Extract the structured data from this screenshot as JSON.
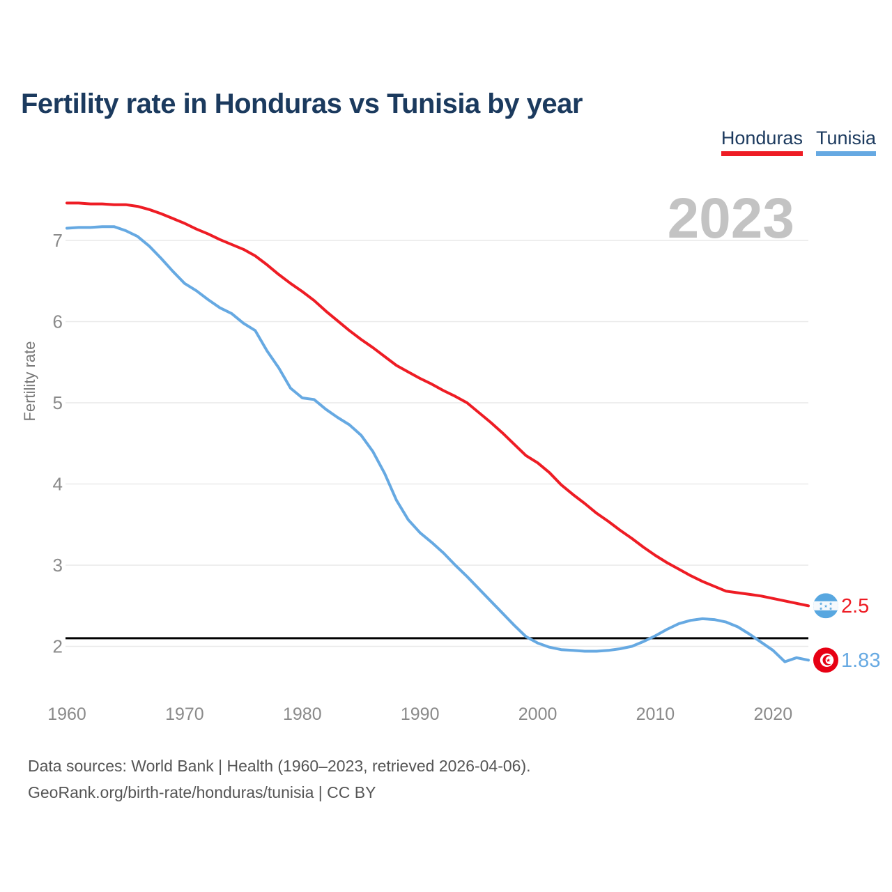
{
  "title": "Fertility rate in Honduras vs Tunisia by year",
  "legend": {
    "items": [
      {
        "label": "Honduras",
        "color": "#ee1c24"
      },
      {
        "label": "Tunisia",
        "color": "#66a9e2"
      }
    ]
  },
  "footer": {
    "line1": "Data sources: World Bank | Health (1960–2023, retrieved 2026-04-06).",
    "line2": "GeoRank.org/birth-rate/honduras/tunisia | CC BY"
  },
  "chart_data": {
    "type": "line",
    "title": "Fertility rate in Honduras vs Tunisia by year",
    "xlabel": "",
    "ylabel": "Fertility rate",
    "watermark": "2023",
    "grid": "horizontal",
    "legend_position": "top-right",
    "xlim": [
      1960,
      2023
    ],
    "ylim": [
      1.6,
      7.6
    ],
    "x_ticks": [
      1960,
      1970,
      1980,
      1990,
      2000,
      2010,
      2020
    ],
    "y_ticks": [
      7,
      6,
      5,
      4,
      3,
      2
    ],
    "reference_line": {
      "value": 2.1,
      "color": "#000000"
    },
    "years": [
      1960,
      1961,
      1962,
      1963,
      1964,
      1965,
      1966,
      1967,
      1968,
      1969,
      1970,
      1971,
      1972,
      1973,
      1974,
      1975,
      1976,
      1977,
      1978,
      1979,
      1980,
      1981,
      1982,
      1983,
      1984,
      1985,
      1986,
      1987,
      1988,
      1989,
      1990,
      1991,
      1992,
      1993,
      1994,
      1995,
      1996,
      1997,
      1998,
      1999,
      2000,
      2001,
      2002,
      2003,
      2004,
      2005,
      2006,
      2007,
      2008,
      2009,
      2010,
      2011,
      2012,
      2013,
      2014,
      2015,
      2016,
      2017,
      2018,
      2019,
      2020,
      2021,
      2022,
      2023
    ],
    "series": [
      {
        "name": "Honduras",
        "color": "#ee1c24",
        "end_value": 2.5,
        "end_label": "2.5",
        "flag": "honduras",
        "values": [
          7.46,
          7.46,
          7.45,
          7.45,
          7.44,
          7.44,
          7.42,
          7.38,
          7.33,
          7.27,
          7.21,
          7.14,
          7.08,
          7.01,
          6.95,
          6.89,
          6.81,
          6.7,
          6.58,
          6.47,
          6.37,
          6.26,
          6.13,
          6.01,
          5.89,
          5.78,
          5.68,
          5.57,
          5.46,
          5.38,
          5.3,
          5.23,
          5.15,
          5.08,
          5.0,
          4.88,
          4.76,
          4.63,
          4.49,
          4.35,
          4.26,
          4.14,
          3.99,
          3.87,
          3.76,
          3.64,
          3.54,
          3.43,
          3.33,
          3.22,
          3.12,
          3.03,
          2.95,
          2.87,
          2.8,
          2.74,
          2.68,
          2.66,
          2.64,
          2.62,
          2.59,
          2.56,
          2.53,
          2.5
        ]
      },
      {
        "name": "Tunisia",
        "color": "#66a9e2",
        "end_value": 1.83,
        "end_label": "1.83",
        "flag": "tunisia",
        "values": [
          7.15,
          7.16,
          7.16,
          7.17,
          7.17,
          7.12,
          7.05,
          6.93,
          6.78,
          6.62,
          6.47,
          6.38,
          6.27,
          6.17,
          6.1,
          5.98,
          5.89,
          5.64,
          5.43,
          5.18,
          5.06,
          5.04,
          4.92,
          4.82,
          4.73,
          4.6,
          4.4,
          4.13,
          3.8,
          3.56,
          3.4,
          3.28,
          3.15,
          3.0,
          2.86,
          2.71,
          2.56,
          2.41,
          2.26,
          2.12,
          2.04,
          1.99,
          1.96,
          1.95,
          1.94,
          1.94,
          1.95,
          1.97,
          2.0,
          2.06,
          2.13,
          2.21,
          2.28,
          2.32,
          2.34,
          2.33,
          2.3,
          2.24,
          2.15,
          2.05,
          1.95,
          1.81,
          1.86,
          1.83
        ]
      }
    ]
  }
}
